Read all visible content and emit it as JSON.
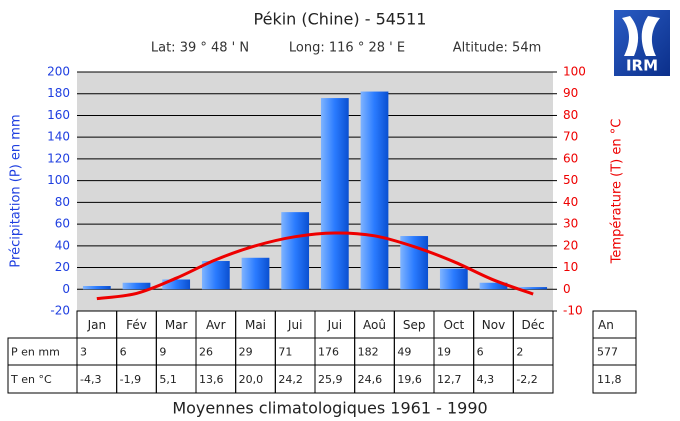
{
  "chart_data": {
    "type": "bar",
    "title": "Pékin (Chine) - 54511",
    "subtitle": [
      "Lat: 39 ° 48 ' N",
      "Long: 116 ° 28 ' E",
      "Altitude: 54m"
    ],
    "logo": "IRM",
    "footer": "Moyennes climatologiques 1961 - 1990",
    "ylabel": "Précipitation (P) en mm",
    "y2label": "Température (T) en °C",
    "categories": [
      "Jan",
      "Fév",
      "Mar",
      "Avr",
      "Mai",
      "Jui",
      "Jui",
      "Aoû",
      "Sep",
      "Oct",
      "Nov",
      "Déc"
    ],
    "total_header": "An",
    "series": [
      {
        "name": "P en mm",
        "type": "bar",
        "color": "#1f6ef0",
        "values": [
          3,
          6,
          9,
          26,
          29,
          71,
          176,
          182,
          49,
          19,
          6,
          2
        ],
        "total": 577
      },
      {
        "name": "T en °C",
        "type": "line",
        "axis": "y2",
        "color": "#ee0000",
        "values": [
          -4.3,
          -1.9,
          5.1,
          13.6,
          20.0,
          24.2,
          25.9,
          24.6,
          19.6,
          12.7,
          4.3,
          -2.2
        ],
        "value_labels": [
          "-4,3",
          "-1,9",
          "5,1",
          "13,6",
          "20,0",
          "24,2",
          "25,9",
          "24,6",
          "19,6",
          "12,7",
          "4,3",
          "-2,2"
        ],
        "total": 11.8,
        "total_label": "11,8"
      }
    ],
    "ylim": [
      -20,
      200
    ],
    "yticks": [
      -20,
      0,
      20,
      40,
      60,
      80,
      100,
      120,
      140,
      160,
      180,
      200
    ],
    "y2lim": [
      -10,
      100
    ],
    "y2ticks": [
      -10,
      0,
      10,
      20,
      30,
      40,
      50,
      60,
      70,
      80,
      90,
      100
    ],
    "grid": true
  }
}
